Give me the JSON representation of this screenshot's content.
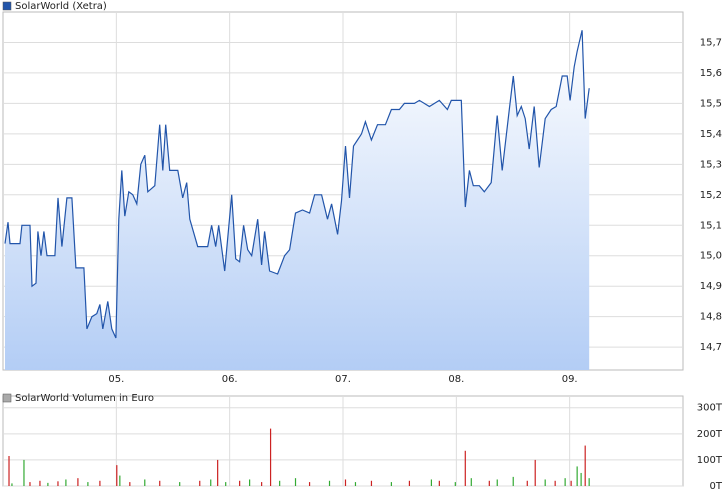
{
  "chart_data": [
    {
      "type": "line",
      "title": "SolarWorld (Xetra)",
      "color": "#2255aa",
      "fill_color": "#b3cdf5",
      "grid": true,
      "xlim": [
        4,
        10
      ],
      "xticks": [
        {
          "value": 5,
          "label": "05."
        },
        {
          "value": 6,
          "label": "06."
        },
        {
          "value": 7,
          "label": "07."
        },
        {
          "value": 8,
          "label": "08."
        },
        {
          "value": 9,
          "label": "09."
        }
      ],
      "ylim": [
        14.625,
        15.8
      ],
      "yticks": [
        {
          "value": 14.7,
          "label": "14,7"
        },
        {
          "value": 14.8,
          "label": "14,8"
        },
        {
          "value": 14.9,
          "label": "14,9"
        },
        {
          "value": 15.0,
          "label": "15,0"
        },
        {
          "value": 15.1,
          "label": "15,1"
        },
        {
          "value": 15.2,
          "label": "15,2"
        },
        {
          "value": 15.3,
          "label": "15,3"
        },
        {
          "value": 15.4,
          "label": "15,4"
        },
        {
          "value": 15.5,
          "label": "15,5"
        },
        {
          "value": 15.6,
          "label": "15,6"
        },
        {
          "value": 15.7,
          "label": "15,7"
        }
      ],
      "x": [
        4.018,
        4.044,
        4.062,
        4.15,
        4.167,
        4.238,
        4.256,
        4.291,
        4.308,
        4.335,
        4.361,
        4.388,
        4.458,
        4.485,
        4.52,
        4.564,
        4.608,
        4.643,
        4.714,
        4.74,
        4.784,
        4.828,
        4.855,
        4.881,
        4.925,
        4.96,
        4.996,
        5.022,
        5.048,
        5.075,
        5.11,
        5.145,
        5.181,
        5.216,
        5.251,
        5.278,
        5.339,
        5.383,
        5.41,
        5.436,
        5.471,
        5.542,
        5.586,
        5.621,
        5.648,
        5.718,
        5.806,
        5.841,
        5.877,
        5.903,
        5.956,
        6.018,
        6.053,
        6.088,
        6.123,
        6.159,
        6.194,
        6.247,
        6.282,
        6.308,
        6.352,
        6.423,
        6.485,
        6.529,
        6.581,
        6.643,
        6.705,
        6.749,
        6.811,
        6.863,
        6.899,
        6.952,
        6.987,
        7.022,
        7.057,
        7.093,
        7.128,
        7.163,
        7.198,
        7.251,
        7.304,
        7.374,
        7.427,
        7.498,
        7.542,
        7.63,
        7.674,
        7.762,
        7.85,
        7.921,
        7.956,
        8.044,
        8.079,
        8.115,
        8.15,
        8.203,
        8.247,
        8.308,
        8.361,
        8.405,
        8.467,
        8.503,
        8.537,
        8.573,
        8.608,
        8.643,
        8.687,
        8.731,
        8.784,
        8.837,
        8.881,
        8.934,
        8.978,
        9.004,
        9.04,
        9.066,
        9.11,
        9.137,
        9.172
      ],
      "values": [
        15.04,
        15.11,
        15.04,
        15.04,
        15.1,
        15.1,
        14.9,
        14.91,
        15.08,
        15.0,
        15.08,
        15.0,
        15.0,
        15.19,
        15.03,
        15.19,
        15.19,
        14.96,
        14.96,
        14.76,
        14.8,
        14.81,
        14.84,
        14.76,
        14.85,
        14.76,
        14.73,
        15.12,
        15.28,
        15.13,
        15.21,
        15.2,
        15.17,
        15.3,
        15.33,
        15.21,
        15.23,
        15.43,
        15.28,
        15.43,
        15.28,
        15.28,
        15.19,
        15.24,
        15.12,
        15.03,
        15.03,
        15.1,
        15.03,
        15.1,
        14.95,
        15.2,
        14.99,
        14.98,
        15.1,
        15.02,
        15.0,
        15.12,
        14.97,
        15.08,
        14.95,
        14.94,
        15.0,
        15.02,
        15.14,
        15.15,
        15.14,
        15.2,
        15.2,
        15.12,
        15.17,
        15.07,
        15.18,
        15.36,
        15.19,
        15.36,
        15.38,
        15.4,
        15.44,
        15.38,
        15.43,
        15.43,
        15.48,
        15.48,
        15.5,
        15.5,
        15.51,
        15.49,
        15.51,
        15.48,
        15.51,
        15.51,
        15.16,
        15.28,
        15.23,
        15.23,
        15.21,
        15.24,
        15.46,
        15.28,
        15.48,
        15.59,
        15.46,
        15.49,
        15.45,
        15.35,
        15.49,
        15.29,
        15.45,
        15.48,
        15.49,
        15.59,
        15.59,
        15.51,
        15.62,
        15.67,
        15.74,
        15.45,
        15.55
      ]
    },
    {
      "type": "bar",
      "title": "SolarWorld Volumen in Euro",
      "color": "#aaaaaa",
      "grid": true,
      "xlim": [
        4,
        10
      ],
      "ylim": [
        0,
        345
      ],
      "yticks": [
        {
          "value": 0,
          "label": "0T"
        },
        {
          "value": 100,
          "label": "100T"
        },
        {
          "value": 200,
          "label": "200T"
        },
        {
          "value": 300,
          "label": "300T"
        }
      ],
      "x": [
        4.053,
        4.079,
        4.185,
        4.238,
        4.326,
        4.396,
        4.485,
        4.555,
        4.661,
        4.749,
        4.855,
        5.004,
        5.031,
        5.119,
        5.251,
        5.383,
        5.559,
        5.736,
        5.833,
        5.894,
        5.965,
        6.088,
        6.176,
        6.282,
        6.361,
        6.441,
        6.581,
        6.705,
        6.881,
        7.022,
        7.11,
        7.251,
        7.427,
        7.586,
        7.78,
        7.85,
        7.991,
        8.079,
        8.132,
        8.291,
        8.361,
        8.502,
        8.626,
        8.696,
        8.784,
        8.872,
        8.96,
        9.013,
        9.066,
        9.101,
        9.137,
        9.172
      ],
      "values": [
        115,
        10,
        100,
        15,
        20,
        12,
        18,
        25,
        30,
        15,
        20,
        80,
        40,
        15,
        25,
        20,
        15,
        20,
        25,
        100,
        15,
        20,
        25,
        15,
        220,
        20,
        30,
        15,
        20,
        25,
        15,
        20,
        15,
        20,
        25,
        20,
        15,
        135,
        30,
        20,
        25,
        35,
        20,
        100,
        25,
        20,
        30,
        20,
        75,
        50,
        155,
        30
      ],
      "colors": [
        "#cc2222",
        "#33aa33",
        "#33aa33",
        "#cc2222",
        "#cc2222",
        "#33aa33",
        "#cc2222",
        "#33aa33",
        "#cc2222",
        "#33aa33",
        "#cc2222",
        "#cc2222",
        "#33aa33",
        "#cc2222",
        "#33aa33",
        "#cc2222",
        "#33aa33",
        "#cc2222",
        "#33aa33",
        "#cc2222",
        "#33aa33",
        "#cc2222",
        "#33aa33",
        "#cc2222",
        "#cc2222",
        "#33aa33",
        "#33aa33",
        "#cc2222",
        "#33aa33",
        "#cc2222",
        "#33aa33",
        "#cc2222",
        "#33aa33",
        "#cc2222",
        "#33aa33",
        "#cc2222",
        "#33aa33",
        "#cc2222",
        "#33aa33",
        "#cc2222",
        "#33aa33",
        "#33aa33",
        "#cc2222",
        "#cc2222",
        "#33aa33",
        "#cc2222",
        "#33aa33",
        "#cc2222",
        "#33aa33",
        "#33aa33",
        "#cc2222",
        "#33aa33"
      ]
    }
  ]
}
